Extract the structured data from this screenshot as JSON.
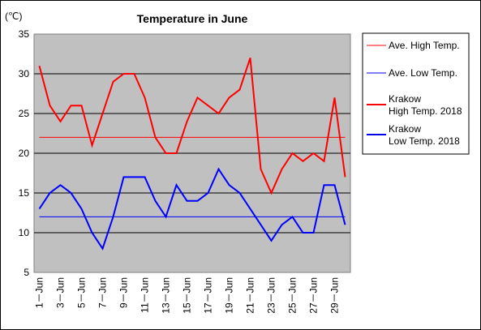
{
  "colors": {
    "plot_bg": "#c0c0c0",
    "high": "#ff0000",
    "low": "#0000ff",
    "grid": "#000000"
  },
  "chart_data": {
    "type": "line",
    "title": "Temperature in June",
    "unit_label": "(℃)",
    "ylim": [
      5,
      35
    ],
    "yticks": [
      5,
      10,
      15,
      20,
      25,
      30,
      35
    ],
    "grid": true,
    "legend_position": "right",
    "x": [
      "1-Jun",
      "2-Jun",
      "3-Jun",
      "4-Jun",
      "5-Jun",
      "6-Jun",
      "7-Jun",
      "8-Jun",
      "9-Jun",
      "10-Jun",
      "11-Jun",
      "12-Jun",
      "13-Jun",
      "14-Jun",
      "15-Jun",
      "16-Jun",
      "17-Jun",
      "18-Jun",
      "19-Jun",
      "20-Jun",
      "21-Jun",
      "22-Jun",
      "23-Jun",
      "24-Jun",
      "25-Jun",
      "26-Jun",
      "27-Jun",
      "28-Jun",
      "29-Jun",
      "30-Jun"
    ],
    "xtick_labels": [
      "1－Jun",
      "3－Jun",
      "5－Jun",
      "7－Jun",
      "9－Jun",
      "11－Jun",
      "13－Jun",
      "15－Jun",
      "17－Jun",
      "19－Jun",
      "21－Jun",
      "23－Jun",
      "25－Jun",
      "27－Jun",
      "29－Jun"
    ],
    "series": [
      {
        "name": "Ave. High Temp.",
        "values": [
          22,
          22,
          22,
          22,
          22,
          22,
          22,
          22,
          22,
          22,
          22,
          22,
          22,
          22,
          22,
          22,
          22,
          22,
          22,
          22,
          22,
          22,
          22,
          22,
          22,
          22,
          22,
          22,
          22,
          22
        ]
      },
      {
        "name": "Ave. Low Temp.",
        "values": [
          12,
          12,
          12,
          12,
          12,
          12,
          12,
          12,
          12,
          12,
          12,
          12,
          12,
          12,
          12,
          12,
          12,
          12,
          12,
          12,
          12,
          12,
          12,
          12,
          12,
          12,
          12,
          12,
          12,
          12
        ]
      },
      {
        "name": "Krakow High Temp. 2018",
        "legend_lines": [
          "Krakow",
          "High Temp. 2018"
        ],
        "values": [
          31,
          26,
          24,
          26,
          26,
          21,
          25,
          29,
          30,
          30,
          27,
          22,
          20,
          20,
          24,
          27,
          26,
          25,
          27,
          28,
          32,
          18,
          15,
          18,
          20,
          19,
          20,
          19,
          27,
          17
        ]
      },
      {
        "name": "Krakow Low Temp. 2018",
        "legend_lines": [
          "Krakow",
          "Low Temp. 2018"
        ],
        "values": [
          13,
          15,
          16,
          15,
          13,
          10,
          8,
          12,
          17,
          17,
          17,
          14,
          12,
          16,
          14,
          14,
          15,
          18,
          16,
          15,
          13,
          11,
          9,
          11,
          12,
          10,
          10,
          16,
          16,
          11
        ]
      }
    ]
  }
}
